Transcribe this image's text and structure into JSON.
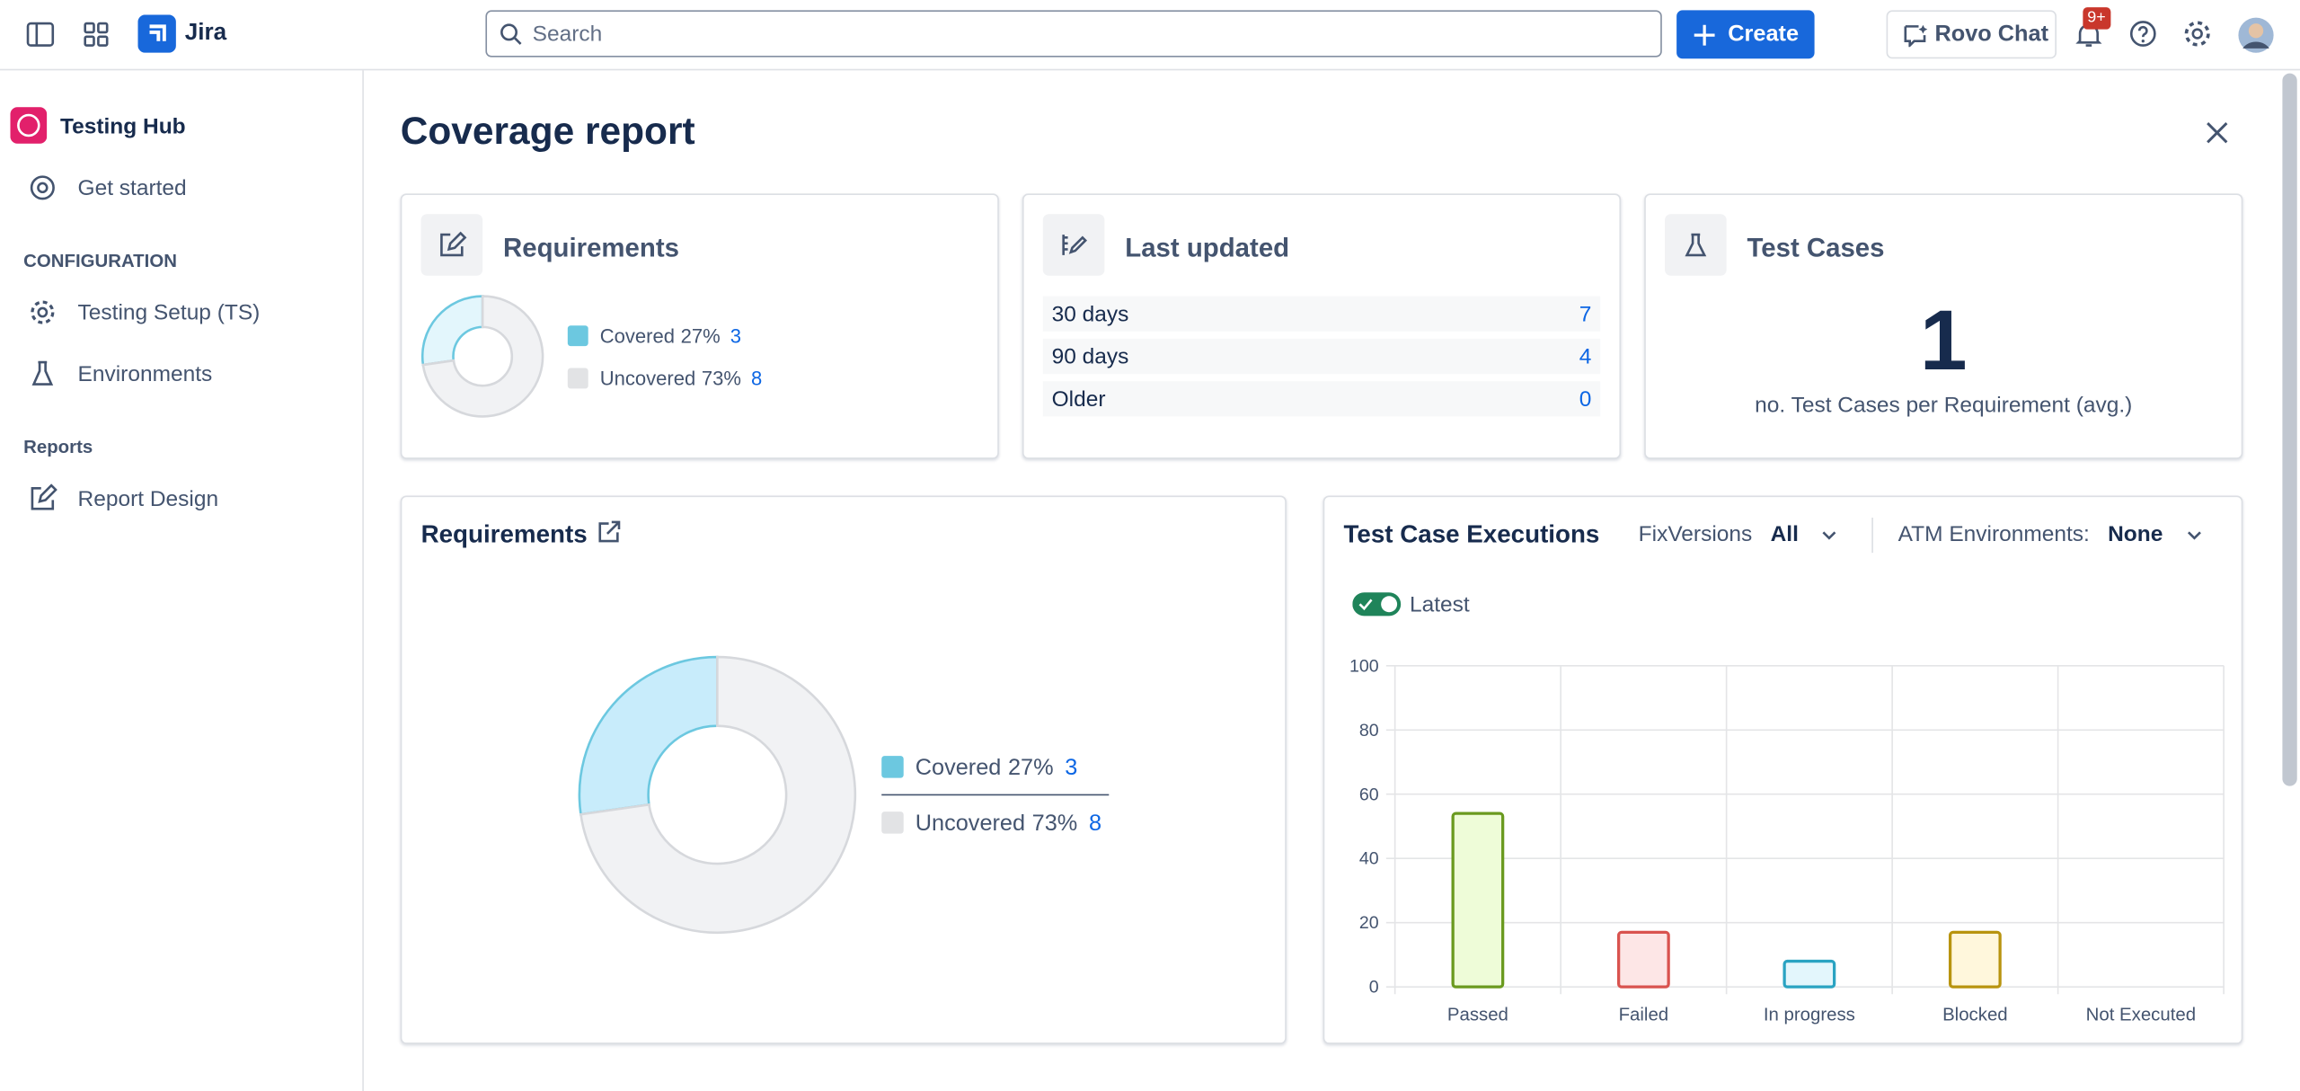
{
  "topbar": {
    "app": "Jira",
    "search_placeholder": "Search",
    "create": "Create",
    "rovo": "Rovo Chat",
    "notifications": "9+"
  },
  "sidebar": {
    "app": "Testing Hub",
    "items": [
      "Get started"
    ],
    "sections": [
      {
        "title": "CONFIGURATION",
        "items": [
          "Testing Setup (TS)",
          "Environments"
        ]
      },
      {
        "title": "Reports",
        "items": [
          "Report Design"
        ]
      }
    ]
  },
  "page": {
    "title": "Coverage report"
  },
  "cards": {
    "requirements": {
      "title": "Requirements"
    },
    "last_updated": {
      "title": "Last updated",
      "rows": [
        {
          "label": "30 days",
          "value": 7
        },
        {
          "label": "90 days",
          "value": 4
        },
        {
          "label": "Older",
          "value": 0
        }
      ]
    },
    "test_cases": {
      "title": "Test Cases",
      "value": 1,
      "caption": "no. Test Cases per Requirement (avg.)"
    }
  },
  "chart_data": [
    {
      "type": "donut",
      "categories": [
        "Covered",
        "Uncovered"
      ],
      "percentage_labels": [
        "27%",
        "73%"
      ],
      "values": [
        3,
        8
      ],
      "colors": [
        "#6cc8e0",
        "#e2e3e5"
      ],
      "fills": [
        "#e3f6fc",
        "#f1f2f4"
      ]
    },
    {
      "type": "donut",
      "title": "Requirements",
      "categories": [
        "Covered",
        "Uncovered"
      ],
      "percentage_labels": [
        "27%",
        "73%"
      ],
      "values": [
        3,
        8
      ],
      "colors": [
        "#6cc8e0",
        "#e2e3e5"
      ],
      "fills": [
        "#c8ecfb",
        "#f1f2f4"
      ]
    },
    {
      "type": "bar",
      "title": "Test Case Executions",
      "filters": [
        {
          "label": "FixVersions",
          "value": "All"
        },
        {
          "label": "ATM Environments:",
          "value": "None"
        }
      ],
      "toggle": "Latest",
      "categories": [
        "Passed",
        "Failed",
        "In progress",
        "Blocked",
        "Not Executed"
      ],
      "values": [
        54,
        17,
        8,
        17,
        0
      ],
      "fills": [
        "#eefcd8",
        "#fde6e6",
        "#e3f6fc",
        "#fff7dc",
        "#f1f2f4"
      ],
      "colors": [
        "#6a9a1f",
        "#d9534f",
        "#2aa3c2",
        "#b8940f",
        "#8590a2"
      ],
      "ylim": [
        0,
        100
      ],
      "yticks": [
        0,
        20,
        40,
        60,
        80,
        100
      ],
      "grid": true
    }
  ]
}
